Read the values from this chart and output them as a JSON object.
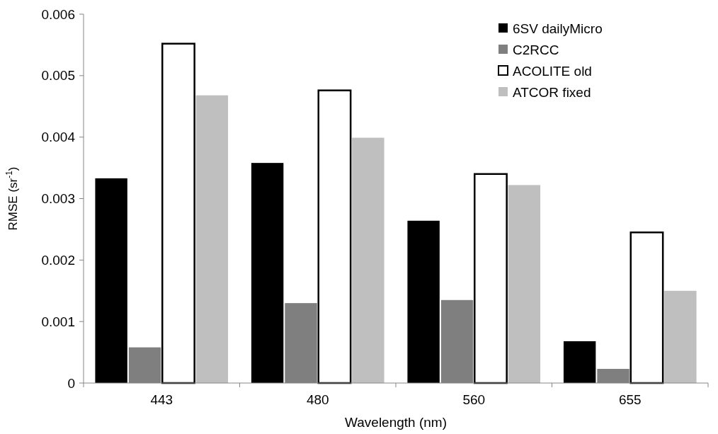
{
  "chart_data": {
    "type": "bar",
    "xlabel": "Wavelength (nm)",
    "ylabel": "RMSE (sr$^{-1}$)",
    "categories": [
      "443",
      "480",
      "560",
      "655"
    ],
    "series": [
      {
        "name": "6SV dailyMicro",
        "color": "#000000",
        "values": [
          0.00333,
          0.00358,
          0.00264,
          0.00068
        ]
      },
      {
        "name": "C2RCC",
        "color": "#7f7f7f",
        "values": [
          0.00058,
          0.0013,
          0.00135,
          0.00023
        ]
      },
      {
        "name": "ACOLITE old",
        "color": "#ffffff",
        "values": [
          0.00552,
          0.00476,
          0.0034,
          0.00245
        ]
      },
      {
        "name": "ATCOR fixed",
        "color": "#bfbfbf",
        "values": [
          0.00468,
          0.00399,
          0.00322,
          0.0015
        ]
      }
    ],
    "ylim": [
      0,
      0.006
    ],
    "yticks": [
      0,
      0.001,
      0.002,
      0.003,
      0.004,
      0.005,
      0.006
    ],
    "grid": false,
    "legend": "top right"
  }
}
